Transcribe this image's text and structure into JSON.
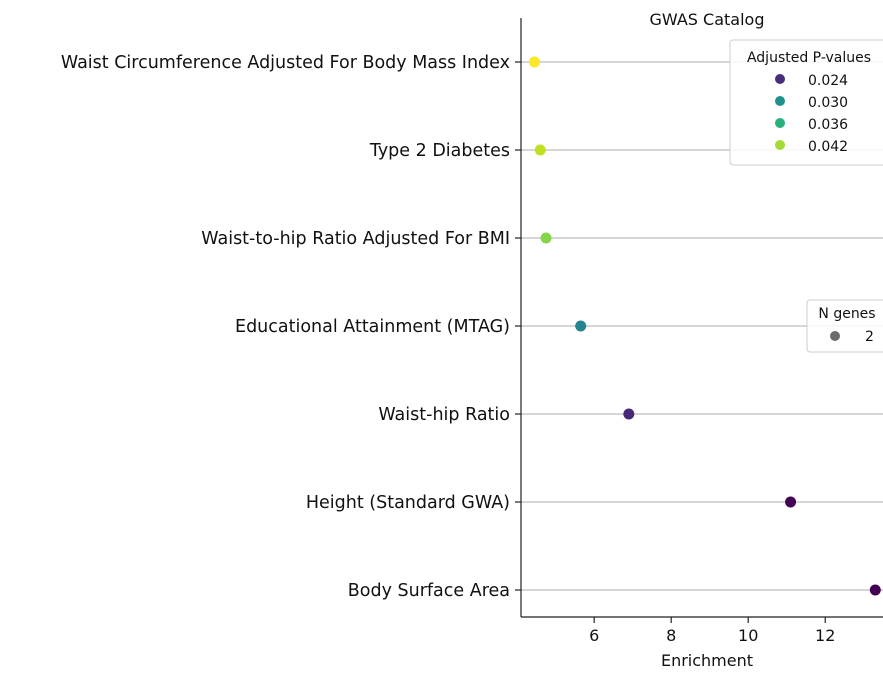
{
  "chart_data": {
    "type": "scatter",
    "title": "GWAS Catalog",
    "xlabel": "Enrichment",
    "ylabel": "",
    "xlim": [
      4.1,
      13.5
    ],
    "xticks": [
      6,
      8,
      10,
      12
    ],
    "grid": "horizontal lines at each category",
    "categories": [
      "Waist Circumference Adjusted For Body Mass Index",
      "Type 2 Diabetes",
      "Waist-to-hip Ratio Adjusted For BMI",
      "Educational Attainment (MTAG)",
      "Waist-hip Ratio",
      "Height (Standard GWA)",
      "Body Surface Area"
    ],
    "points": [
      {
        "category": "Waist Circumference Adjusted For Body Mass Index",
        "enrichment": 4.45,
        "adjusted_p": 0.045,
        "color": "#fde725",
        "n_genes": 2
      },
      {
        "category": "Type 2 Diabetes",
        "enrichment": 4.6,
        "adjusted_p": 0.043,
        "color": "#c2df23",
        "n_genes": 2
      },
      {
        "category": "Waist-to-hip Ratio Adjusted For BMI",
        "enrichment": 4.75,
        "adjusted_p": 0.041,
        "color": "#86d549",
        "n_genes": 2
      },
      {
        "category": "Educational Attainment (MTAG)",
        "enrichment": 5.65,
        "adjusted_p": 0.031,
        "color": "#25858e",
        "n_genes": 2
      },
      {
        "category": "Waist-hip Ratio",
        "enrichment": 6.9,
        "adjusted_p": 0.023,
        "color": "#482878",
        "n_genes": 2
      },
      {
        "category": "Height (Standard GWA)",
        "enrichment": 11.1,
        "adjusted_p": 0.019,
        "color": "#440154",
        "n_genes": 2
      },
      {
        "category": "Body Surface Area",
        "enrichment": 13.3,
        "adjusted_p": 0.019,
        "color": "#440154",
        "n_genes": 2
      }
    ],
    "legend_color": {
      "title": "Adjusted P-values",
      "placement": "top-right",
      "entries": [
        {
          "label": "0.024",
          "color": "#472d7b"
        },
        {
          "label": "0.030",
          "color": "#21918c"
        },
        {
          "label": "0.036",
          "color": "#2ab07f"
        },
        {
          "label": "0.042",
          "color": "#a5db36"
        }
      ]
    },
    "legend_size": {
      "title": "N genes",
      "placement": "right",
      "entries": [
        {
          "label": "2",
          "color": "#6b6b6b"
        }
      ]
    }
  }
}
